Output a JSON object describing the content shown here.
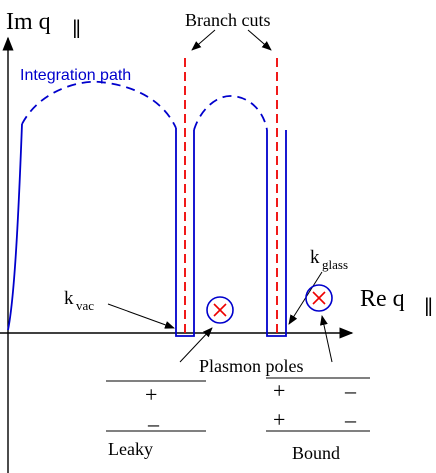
{
  "axes": {
    "y_label_main": "Im q",
    "y_label_sub": "∥",
    "x_label_main": "Re q",
    "x_label_sub": "∥"
  },
  "labels": {
    "integration_path": "Integration path",
    "branch_cuts": "Branch cuts",
    "k_vac_main": "k",
    "k_vac_sub": "vac",
    "k_glass_main": "k",
    "k_glass_sub": "glass",
    "plasmon_poles": "Plasmon poles"
  },
  "sheets": {
    "leaky": {
      "label": "Leaky",
      "signs": [
        "+",
        "–"
      ]
    },
    "bound": {
      "label": "Bound",
      "signs": [
        "+",
        "–",
        "+",
        "–"
      ]
    }
  },
  "colors": {
    "path": "#0000cc",
    "branch_cut": "#ee0000",
    "pole_circle": "#0000cc",
    "pole_cross": "#ee0000",
    "axis": "#000000"
  }
}
